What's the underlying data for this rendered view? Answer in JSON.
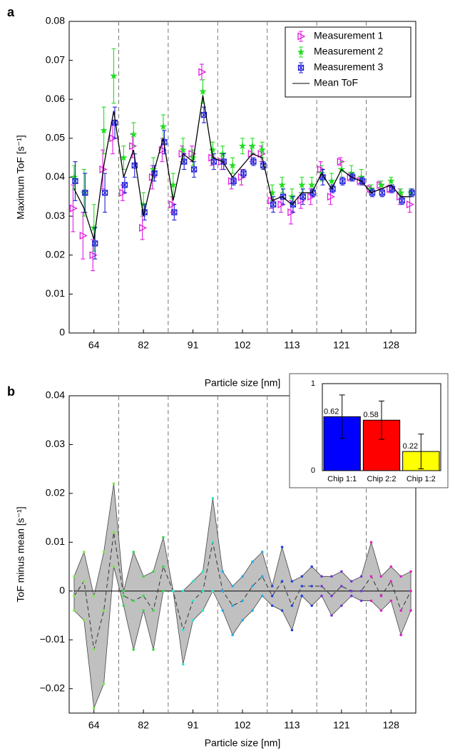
{
  "chart_data": [
    {
      "type": "errorbar-line",
      "panel_label": "a",
      "x_label": "Particle size [nm]",
      "y_label": "Maximum ToF [s⁻¹]",
      "categories": [
        null,
        null,
        "64",
        null,
        null,
        null,
        null,
        "82",
        null,
        null,
        null,
        null,
        "91",
        null,
        null,
        null,
        null,
        "102",
        null,
        null,
        null,
        null,
        "113",
        null,
        null,
        null,
        null,
        "121",
        null,
        null,
        null,
        null,
        "128",
        null,
        null
      ],
      "ylim": [
        0,
        0.08
      ],
      "yticks": [
        0,
        0.01,
        0.02,
        0.03,
        0.04,
        0.05,
        0.06,
        0.07,
        0.08
      ],
      "group_separators": true,
      "legend": "upper right",
      "series": [
        {
          "name": "Measurement 1",
          "color": "#e01ee0",
          "marker": "triangle-right",
          "values": [
            0.032,
            0.025,
            0.02,
            0.042,
            0.05,
            0.036,
            0.048,
            0.027,
            0.04,
            0.047,
            0.033,
            0.046,
            0.046,
            0.067,
            0.045,
            0.044,
            0.039,
            0.04,
            0.046,
            0.046,
            0.034,
            0.033,
            0.031,
            0.034,
            0.035,
            0.042,
            0.035,
            0.044,
            0.04,
            0.039,
            0.037,
            0.038,
            0.037,
            0.035,
            0.033
          ],
          "errors": [
            0.006,
            0.006,
            0.004,
            0.005,
            0.004,
            0.002,
            0.003,
            0.003,
            0.003,
            0.003,
            0.002,
            0.002,
            0.002,
            0.002,
            0.002,
            0.002,
            0.002,
            0.002,
            0.002,
            0.002,
            0.002,
            0.002,
            0.003,
            0.002,
            0.002,
            0.002,
            0.002,
            0.001,
            0.001,
            0.001,
            0.001,
            0.001,
            0.001,
            0.002,
            0.002
          ]
        },
        {
          "name": "Measurement 2",
          "color": "#22dd22",
          "marker": "star",
          "values": [
            0.04,
            0.036,
            0.027,
            0.052,
            0.066,
            0.045,
            0.051,
            0.033,
            0.042,
            0.053,
            0.038,
            0.047,
            0.045,
            0.062,
            0.047,
            0.046,
            0.043,
            0.048,
            0.048,
            0.047,
            0.036,
            0.038,
            0.035,
            0.038,
            0.038,
            0.041,
            0.039,
            0.042,
            0.041,
            0.04,
            0.037,
            0.038,
            0.039,
            0.036,
            0.036
          ],
          "errors": [
            0.003,
            0.006,
            0.006,
            0.006,
            0.007,
            0.003,
            0.003,
            0.003,
            0.003,
            0.003,
            0.003,
            0.003,
            0.002,
            0.003,
            0.002,
            0.002,
            0.002,
            0.002,
            0.002,
            0.002,
            0.002,
            0.002,
            0.002,
            0.002,
            0.002,
            0.002,
            0.002,
            0.002,
            0.002,
            0.002,
            0.001,
            0.001,
            0.001,
            0.001,
            0.001
          ]
        },
        {
          "name": "Measurement 3",
          "color": "#2020d8",
          "marker": "square-x",
          "values": [
            0.039,
            0.036,
            0.023,
            0.036,
            0.054,
            0.038,
            0.043,
            0.031,
            0.041,
            0.049,
            0.031,
            0.044,
            0.042,
            0.056,
            0.044,
            0.044,
            0.039,
            0.041,
            0.044,
            0.043,
            0.033,
            0.035,
            0.033,
            0.035,
            0.036,
            0.04,
            0.037,
            0.039,
            0.04,
            0.039,
            0.036,
            0.036,
            0.037,
            0.034,
            0.036
          ],
          "errors": [
            0.005,
            0.005,
            0.004,
            0.005,
            0.004,
            0.002,
            0.003,
            0.002,
            0.002,
            0.003,
            0.002,
            0.002,
            0.002,
            0.002,
            0.002,
            0.002,
            0.001,
            0.001,
            0.001,
            0.001,
            0.002,
            0.002,
            0.002,
            0.002,
            0.001,
            0.002,
            0.001,
            0.001,
            0.001,
            0.001,
            0.001,
            0.001,
            0.001,
            0.001,
            0.001
          ]
        },
        {
          "name": "Mean ToF",
          "color": "#000000",
          "marker": "none",
          "values": [
            0.037,
            0.032,
            0.024,
            0.043,
            0.057,
            0.04,
            0.047,
            0.03,
            0.041,
            0.05,
            0.034,
            0.046,
            0.044,
            0.061,
            0.045,
            0.044,
            0.04,
            0.043,
            0.046,
            0.045,
            0.034,
            0.035,
            0.033,
            0.036,
            0.036,
            0.041,
            0.037,
            0.042,
            0.04,
            0.039,
            0.036,
            0.037,
            0.038,
            0.035,
            0.035
          ]
        }
      ]
    },
    {
      "type": "band",
      "panel_label": "b",
      "x_label": "Particle size [nm]",
      "y_label": "ToF minus mean [s⁻¹]",
      "categories": [
        null,
        null,
        "64",
        null,
        null,
        null,
        null,
        "82",
        null,
        null,
        null,
        null,
        "91",
        null,
        null,
        null,
        null,
        "102",
        null,
        null,
        null,
        null,
        "113",
        null,
        null,
        null,
        null,
        "121",
        null,
        null,
        null,
        null,
        "128",
        null,
        null
      ],
      "ylim": [
        -0.025,
        0.04
      ],
      "yticks": [
        {
          "value": -0.02,
          "label": "−0.02"
        },
        {
          "value": -0.01,
          "label": "−0.01"
        },
        0,
        0.01,
        0.02,
        0.03,
        0.04
      ],
      "group_separators": true,
      "band_color": "#c0c0c0",
      "group_colors": [
        "#7ee84a",
        "#3cd84a",
        "#2ee8c8",
        "#22aaee",
        "#2244dd",
        "#7733dd",
        "#dd22cc"
      ],
      "band_upper": [
        0.003,
        0.008,
        -0.001,
        0.008,
        0.022,
        0.0,
        0.008,
        0.003,
        0.004,
        0.011,
        0.0,
        0.0,
        0.002,
        0.004,
        0.019,
        0.004,
        0.001,
        0.003,
        0.006,
        0.008,
        0.001,
        0.009,
        0.002,
        0.003,
        0.005,
        0.003,
        0.003,
        0.004,
        0.002,
        0.003,
        0.01,
        0.003,
        0.005,
        0.003,
        0.004
      ],
      "band_lower": [
        -0.004,
        -0.006,
        -0.024,
        -0.019,
        0.005,
        -0.003,
        -0.012,
        -0.004,
        -0.012,
        0.0,
        0.0,
        -0.015,
        -0.006,
        -0.004,
        0.0,
        -0.004,
        -0.009,
        -0.006,
        -0.004,
        -0.001,
        -0.003,
        -0.004,
        -0.008,
        -0.001,
        -0.003,
        -0.001,
        -0.005,
        -0.003,
        -0.001,
        -0.002,
        -0.002,
        -0.004,
        -0.002,
        -0.009,
        -0.004
      ],
      "mean_line": [
        -0.001,
        0.002,
        -0.012,
        -0.004,
        0.012,
        -0.001,
        -0.002,
        -0.001,
        -0.004,
        0.005,
        0.0,
        -0.008,
        -0.002,
        0.0,
        0.01,
        0.0,
        -0.003,
        -0.002,
        0.001,
        0.003,
        -0.001,
        0.002,
        -0.003,
        0.001,
        0.001,
        0.001,
        -0.001,
        0.001,
        0.0,
        0.0,
        0.003,
        -0.001,
        0.002,
        -0.004,
        0.0
      ]
    },
    {
      "type": "bar",
      "categories": [
        "Chip 1:1",
        "Chip 2:2",
        "Chip 1:2"
      ],
      "values": [
        0.62,
        0.58,
        0.22
      ],
      "value_labels": [
        "0.62",
        "0.58",
        "0.22"
      ],
      "errors": [
        0.25,
        0.22,
        0.2
      ],
      "colors": [
        "#0000ff",
        "#ff0000",
        "#ffff00"
      ],
      "ylim": [
        0,
        1
      ],
      "yticks": [
        0,
        1
      ]
    }
  ]
}
